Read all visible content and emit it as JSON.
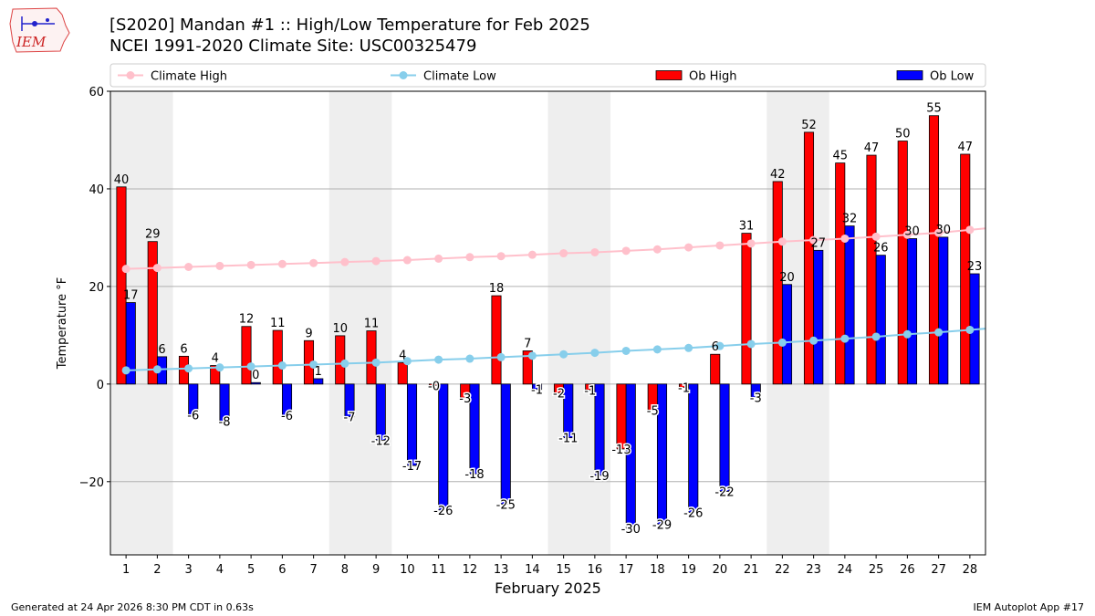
{
  "header": {
    "title_line1": "[S2020] Mandan #1 :: High/Low Temperature for Feb 2025",
    "title_line2": "NCEI 1991-2020 Climate Site: USC00325479",
    "logo_text": "IEM"
  },
  "footer": {
    "generated": "Generated at 24 Apr 2026 8:30 PM CDT in 0.63s",
    "app": "IEM Autoplot App #17"
  },
  "colors": {
    "ob_high": "#ff0000",
    "ob_low": "#0000ff",
    "climate_high": "#ffc0cb",
    "climate_low": "#87ceeb",
    "weekend_shade": "#eeeeee",
    "grid": "#b0b0b0"
  },
  "chart_data": {
    "type": "bar",
    "title": "[S2020] Mandan #1 :: High/Low Temperature for Feb 2025",
    "xlabel": "February 2025",
    "ylabel": "Temperature °F",
    "xlim": [
      0.5,
      28.5
    ],
    "ylim": [
      -35,
      60
    ],
    "yticks": [
      -20,
      0,
      20,
      40,
      60
    ],
    "ytick_labels": [
      "−20",
      "0",
      "20",
      "40",
      "60"
    ],
    "grid": "horizontal",
    "legend_position": "top",
    "categories": [
      1,
      2,
      3,
      4,
      5,
      6,
      7,
      8,
      9,
      10,
      11,
      12,
      13,
      14,
      15,
      16,
      17,
      18,
      19,
      20,
      21,
      22,
      23,
      24,
      25,
      26,
      27,
      28
    ],
    "shaded_ranges": [
      [
        0.5,
        2.5
      ],
      [
        7.5,
        9.5
      ],
      [
        14.5,
        16.5
      ],
      [
        21.5,
        23.5
      ]
    ],
    "legend": [
      {
        "name": "Climate High",
        "kind": "line",
        "color": "#ffc0cb"
      },
      {
        "name": "Climate Low",
        "kind": "line",
        "color": "#87ceeb"
      },
      {
        "name": "Ob High",
        "kind": "bar",
        "color": "#ff0000"
      },
      {
        "name": "Ob Low",
        "kind": "bar",
        "color": "#0000ff"
      }
    ],
    "series": [
      {
        "name": "Ob High",
        "type": "bar",
        "values": [
          40.4,
          29.2,
          5.7,
          3.8,
          11.8,
          11.0,
          8.9,
          9.9,
          10.9,
          4.4,
          -0.3,
          -2.8,
          18.1,
          6.8,
          -1.8,
          -1.2,
          -13.3,
          -5.4,
          -0.7,
          6.1,
          30.9,
          41.5,
          51.6,
          45.3,
          46.9,
          49.8,
          55.0,
          47.1
        ],
        "labels": [
          "40",
          "29",
          "6",
          "4",
          "12",
          "11",
          "9",
          "10",
          "11",
          "4",
          "-0",
          "-3",
          "18",
          "7",
          "-2",
          "-1",
          "-13",
          "-5",
          "-1",
          "6",
          "31",
          "42",
          "52",
          "45",
          "47",
          "50",
          "55",
          "47"
        ]
      },
      {
        "name": "Ob Low",
        "type": "bar",
        "values": [
          16.7,
          5.6,
          -6.3,
          -7.6,
          0.3,
          -6.4,
          1.1,
          -6.7,
          -11.5,
          -16.7,
          -25.8,
          -18.4,
          -24.6,
          -1.1,
          -11.0,
          -18.7,
          -29.6,
          -28.7,
          -26.3,
          -22.0,
          -2.7,
          20.4,
          27.4,
          32.4,
          26.4,
          29.8,
          30.1,
          22.6
        ],
        "labels": [
          "17",
          "6",
          "-6",
          "-8",
          "0",
          "-6",
          "1",
          "-7",
          "-12",
          "-17",
          "-26",
          "-18",
          "-25",
          "-1",
          "-11",
          "-19",
          "-30",
          "-29",
          "-26",
          "-22",
          "-3",
          "20",
          "27",
          "32",
          "26",
          "30",
          "30",
          "23"
        ]
      },
      {
        "name": "Climate High",
        "type": "line",
        "values": [
          23.6,
          23.8,
          24.0,
          24.2,
          24.4,
          24.6,
          24.8,
          25.0,
          25.2,
          25.4,
          25.7,
          26.0,
          26.2,
          26.5,
          26.8,
          27.0,
          27.3,
          27.6,
          28.0,
          28.4,
          28.8,
          29.2,
          29.5,
          29.8,
          30.2,
          30.6,
          31.0,
          31.6
        ]
      },
      {
        "name": "Climate Low",
        "type": "line",
        "values": [
          2.8,
          3.0,
          3.2,
          3.4,
          3.6,
          3.8,
          4.0,
          4.2,
          4.4,
          4.7,
          5.0,
          5.2,
          5.5,
          5.8,
          6.1,
          6.4,
          6.8,
          7.1,
          7.4,
          7.8,
          8.2,
          8.5,
          8.9,
          9.3,
          9.7,
          10.2,
          10.6,
          11.1
        ]
      }
    ]
  }
}
